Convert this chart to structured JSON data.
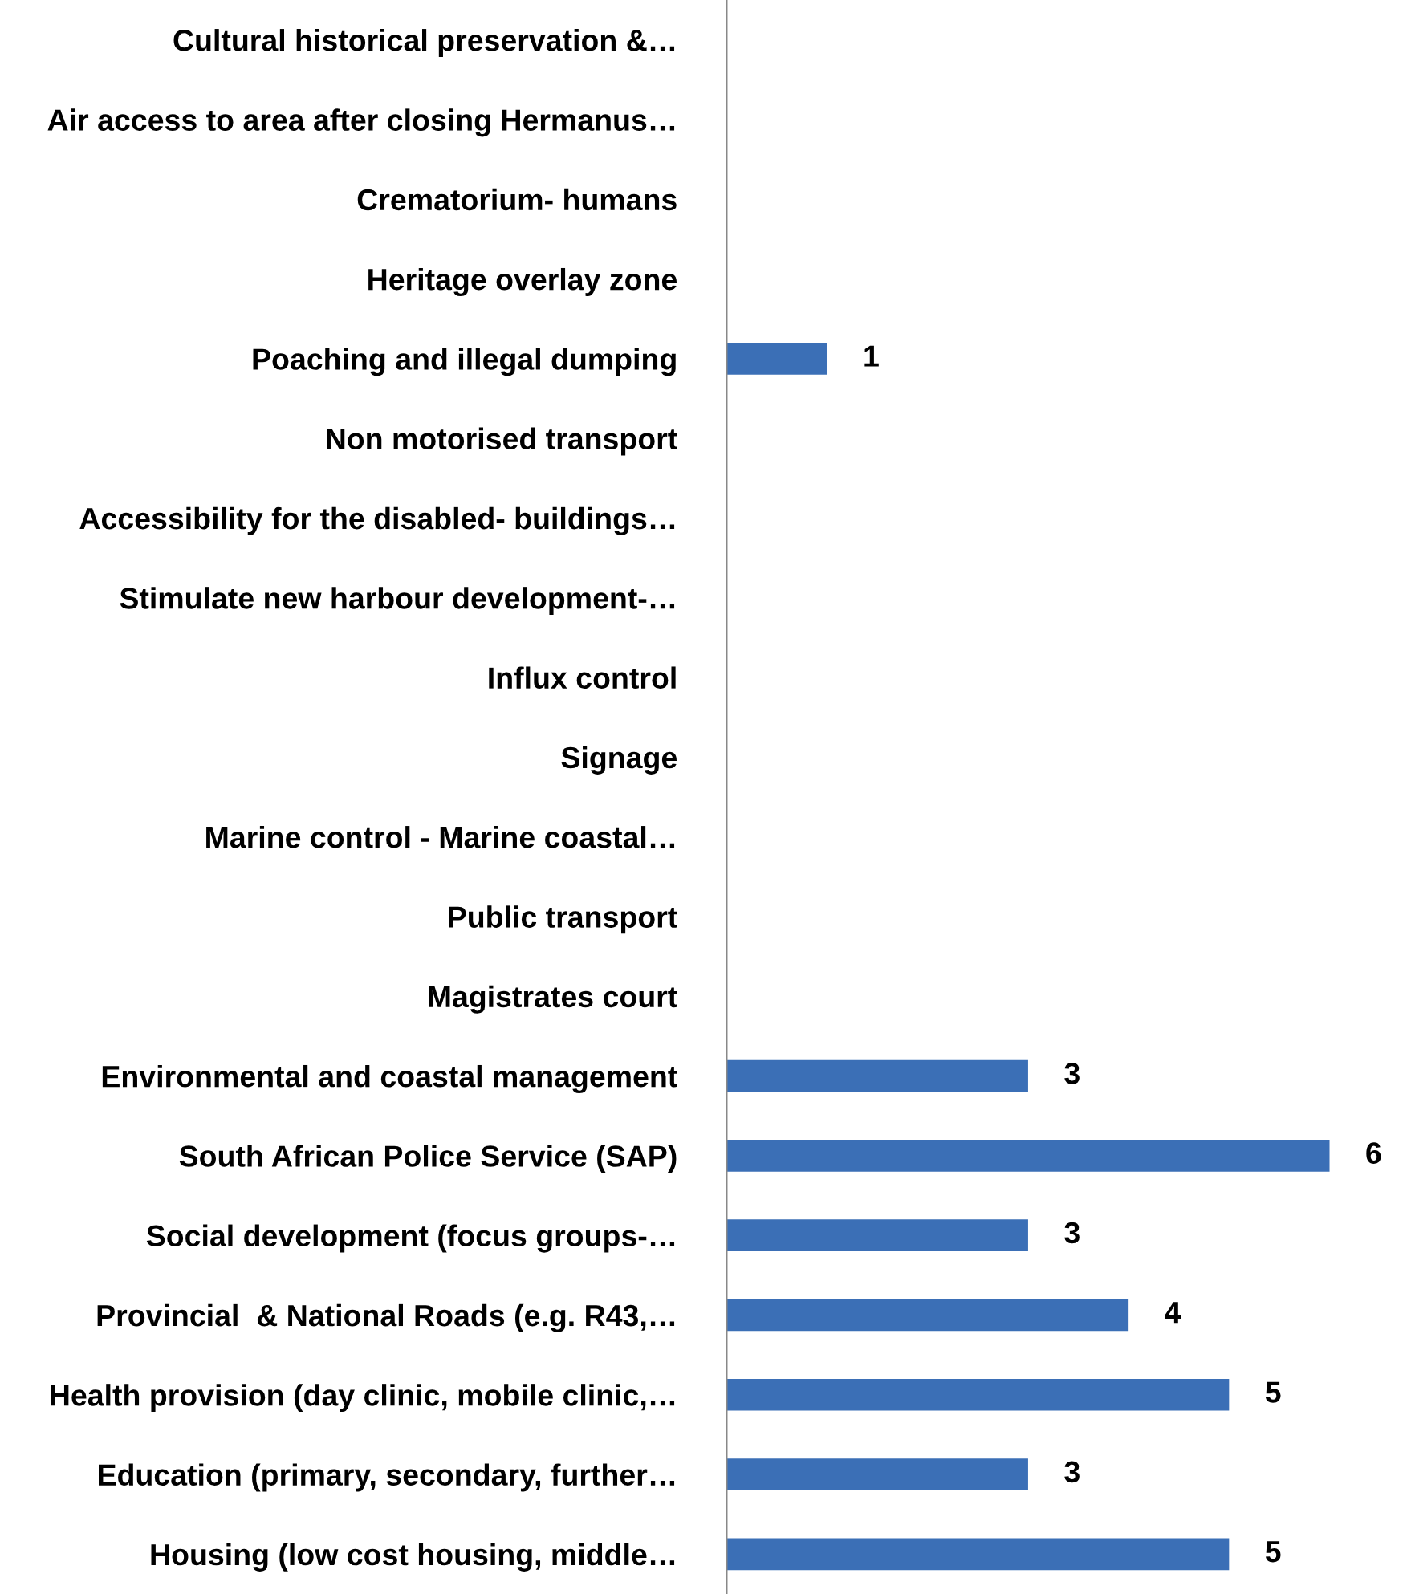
{
  "chart_data": {
    "type": "bar",
    "orientation": "horizontal",
    "categories": [
      "Cultural historical preservation &…",
      "Air access to area after closing Hermanus…",
      "Crematorium- humans",
      "Heritage overlay zone",
      "Poaching and illegal dumping",
      "Non motorised transport",
      "Accessibility for the disabled- buildings…",
      "Stimulate new harbour development-…",
      "Influx control",
      "Signage",
      "Marine control - Marine coastal…",
      "Public transport",
      "Magistrates court",
      "Environmental and coastal management",
      "South African Police Service (SAP)",
      "Social development (focus groups-…",
      "Provincial  & National Roads (e.g. R43,…",
      "Health provision (day clinic, mobile clinic,…",
      "Education (primary, secondary, further…",
      "Housing (low cost housing, middle…"
    ],
    "values": [
      0,
      0,
      0,
      0,
      1,
      0,
      0,
      0,
      0,
      0,
      0,
      0,
      0,
      3,
      6,
      3,
      4,
      5,
      3,
      5
    ],
    "value_labels": [
      null,
      null,
      null,
      null,
      "1",
      null,
      null,
      null,
      null,
      null,
      null,
      null,
      null,
      "3",
      "6",
      "3",
      "4",
      "5",
      "3",
      "5"
    ],
    "color": "#3b6fb6"
  }
}
